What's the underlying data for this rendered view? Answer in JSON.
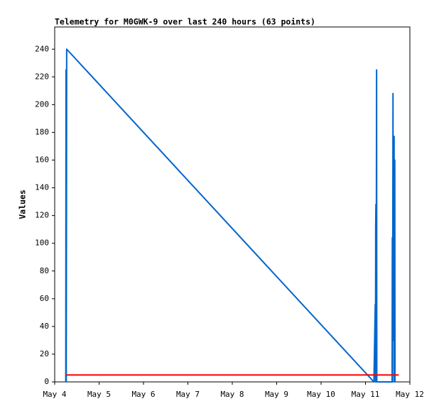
{
  "chart_data": {
    "type": "line",
    "title": "Telemetry for M0GWK-9 over last 240 hours (63 points)",
    "y_label": "Values",
    "xlim": [
      4,
      12
    ],
    "xticks": [
      {
        "value": 4,
        "label": "May 4"
      },
      {
        "value": 5,
        "label": "May 5"
      },
      {
        "value": 6,
        "label": "May 6"
      },
      {
        "value": 7,
        "label": "May 7"
      },
      {
        "value": 8,
        "label": "May 8"
      },
      {
        "value": 9,
        "label": "May 9"
      },
      {
        "value": 10,
        "label": "May 10"
      },
      {
        "value": 11,
        "label": "May 11"
      },
      {
        "value": 12,
        "label": "May 12"
      }
    ],
    "ylim": [
      0,
      256
    ],
    "yticks": [
      0,
      20,
      40,
      60,
      80,
      100,
      120,
      140,
      160,
      180,
      200,
      220,
      240
    ],
    "grid": false,
    "series": [
      {
        "color": "#0066cc",
        "x": [
          4.25,
          4.255,
          4.26,
          4.27,
          11.19,
          11.22,
          11.225,
          11.23,
          11.235,
          11.24,
          11.25,
          11.255,
          11.6,
          11.605,
          11.61,
          11.62,
          11.625,
          11.63,
          11.64,
          11.645,
          11.65,
          11.66,
          11.665
        ],
        "values": [
          0,
          225,
          0,
          240,
          0,
          56,
          0,
          112,
          128,
          0,
          225,
          0,
          0,
          104,
          0,
          208,
          30,
          88,
          147,
          177,
          0,
          160,
          0
        ]
      },
      {
        "color": "#ff0000",
        "x": [
          4.255,
          11.75
        ],
        "values": [
          5,
          5
        ]
      }
    ]
  }
}
